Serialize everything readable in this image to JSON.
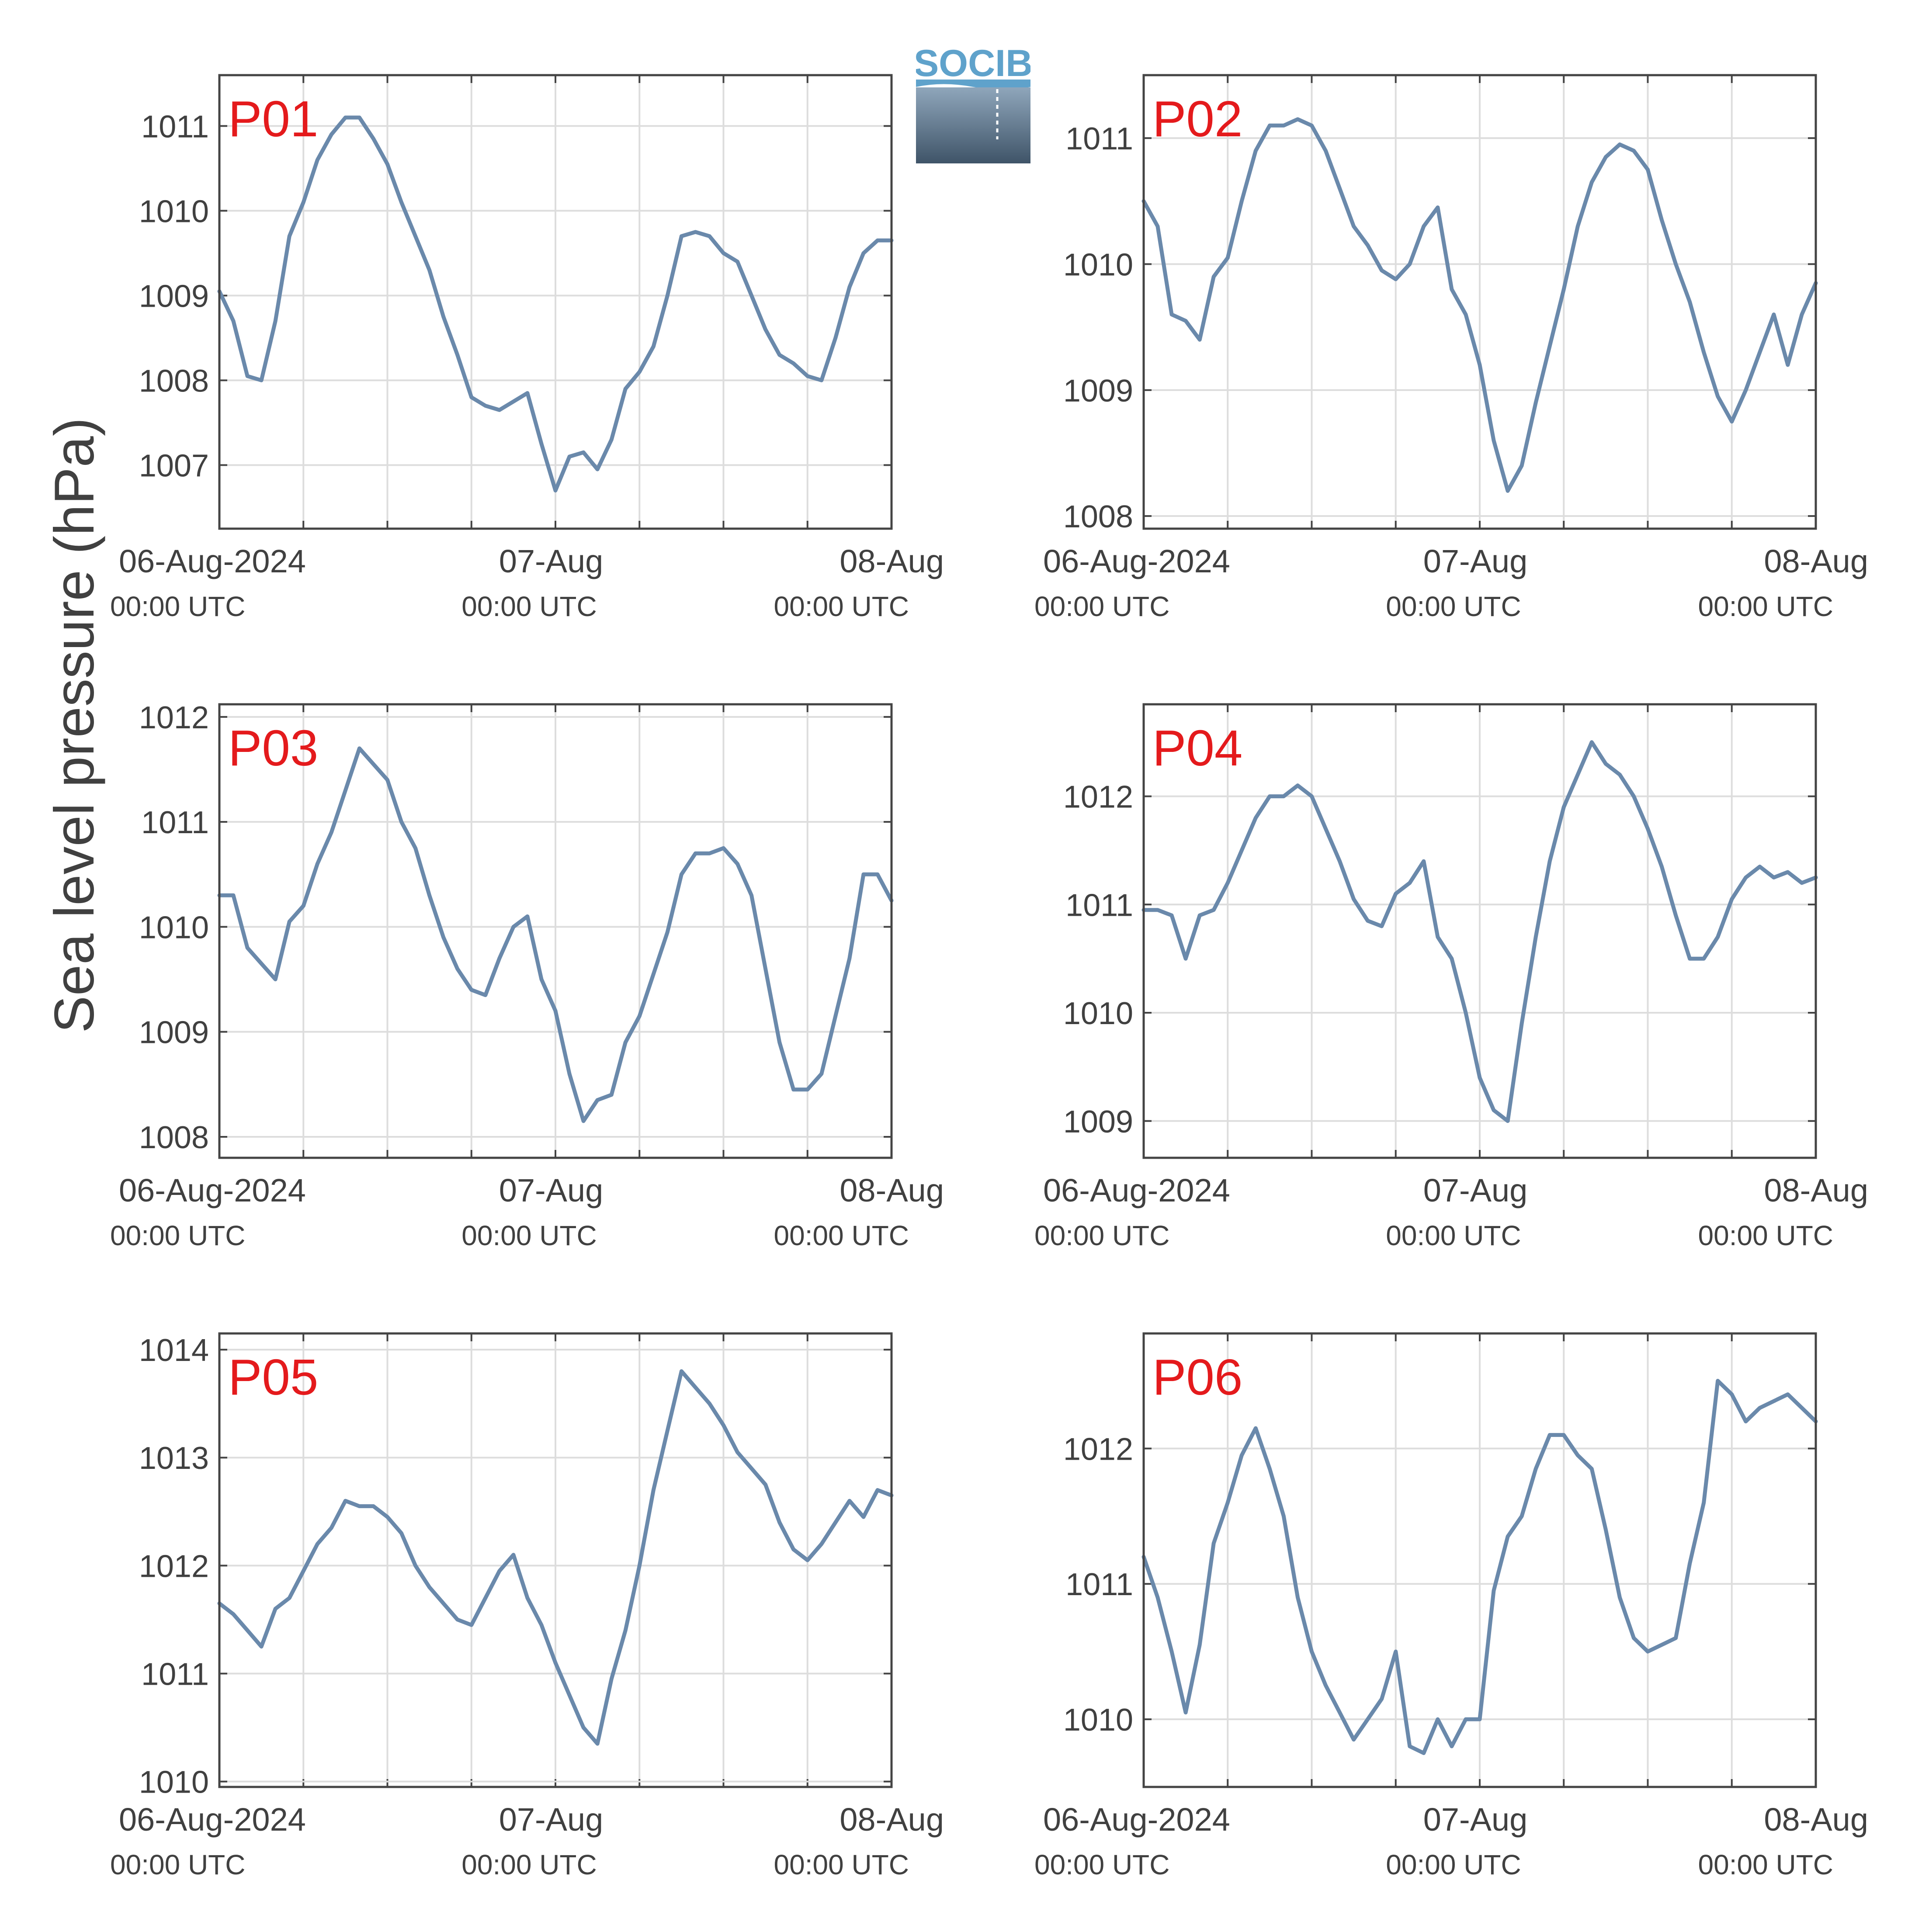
{
  "ylabel": "Sea level pressure (hPa)",
  "logo_text": "SOCIB",
  "colors": {
    "line": "#6a89ab",
    "panel_label": "#e41a1c",
    "grid": "#dddddd",
    "axis": "#444444",
    "text": "#404040"
  },
  "chart_data": [
    {
      "type": "line",
      "panel": "P01",
      "x_range": [
        "06-Aug-2024 00:00",
        "08-Aug-2024 00:00"
      ],
      "x_ticks": [
        {
          "value": "06-Aug-2024 00:00",
          "label": "06-Aug-2024",
          "sublabel": "00:00 UTC"
        },
        {
          "value": "07-Aug-2024 00:00",
          "label": "07-Aug",
          "sublabel": "00:00 UTC"
        },
        {
          "value": "08-Aug-2024 00:00",
          "label": "08-Aug",
          "sublabel": "00:00 UTC"
        }
      ],
      "ylim": [
        1006.25,
        1011.6
      ],
      "yticks": [
        1007,
        1008,
        1009,
        1010,
        1011
      ],
      "grid": true,
      "x": [
        "06-Aug 00:00",
        "06-Aug 01:00",
        "06-Aug 02:00",
        "06-Aug 03:00",
        "06-Aug 04:00",
        "06-Aug 05:00",
        "06-Aug 06:00",
        "06-Aug 07:00",
        "06-Aug 08:00",
        "06-Aug 09:00",
        "06-Aug 10:00",
        "06-Aug 11:00",
        "06-Aug 12:00",
        "06-Aug 13:00",
        "06-Aug 14:00",
        "06-Aug 15:00",
        "06-Aug 16:00",
        "06-Aug 17:00",
        "06-Aug 18:00",
        "06-Aug 19:00",
        "06-Aug 20:00",
        "06-Aug 21:00",
        "06-Aug 22:00",
        "06-Aug 23:00",
        "07-Aug 00:00",
        "07-Aug 01:00",
        "07-Aug 02:00",
        "07-Aug 03:00",
        "07-Aug 04:00",
        "07-Aug 05:00",
        "07-Aug 06:00",
        "07-Aug 07:00",
        "07-Aug 08:00",
        "07-Aug 09:00",
        "07-Aug 10:00",
        "07-Aug 11:00",
        "07-Aug 12:00",
        "07-Aug 13:00",
        "07-Aug 14:00",
        "07-Aug 15:00",
        "07-Aug 16:00",
        "07-Aug 17:00",
        "07-Aug 18:00",
        "07-Aug 19:00",
        "07-Aug 20:00",
        "07-Aug 21:00",
        "07-Aug 22:00",
        "07-Aug 23:00",
        "08-Aug 00:00"
      ],
      "values": [
        1009.05,
        1008.7,
        1008.05,
        1008.0,
        1008.7,
        1009.7,
        1010.1,
        1010.6,
        1010.9,
        1011.1,
        1011.1,
        1010.85,
        1010.55,
        1010.1,
        1009.7,
        1009.3,
        1008.75,
        1008.3,
        1007.8,
        1007.7,
        1007.65,
        1007.75,
        1007.85,
        1007.25,
        1006.7,
        1007.1,
        1007.15,
        1006.95,
        1007.3,
        1007.9,
        1008.1,
        1008.4,
        1009.0,
        1009.7,
        1009.75,
        1009.7,
        1009.5,
        1009.4,
        1009.0,
        1008.6,
        1008.3,
        1008.2,
        1008.05,
        1008.0,
        1008.5,
        1009.1,
        1009.5,
        1009.65,
        1009.65
      ]
    },
    {
      "type": "line",
      "panel": "P02",
      "x_range": [
        "06-Aug-2024 00:00",
        "08-Aug-2024 00:00"
      ],
      "x_ticks": [
        {
          "value": "06-Aug-2024 00:00",
          "label": "06-Aug-2024",
          "sublabel": "00:00 UTC"
        },
        {
          "value": "07-Aug-2024 00:00",
          "label": "07-Aug",
          "sublabel": "00:00 UTC"
        },
        {
          "value": "08-Aug-2024 00:00",
          "label": "08-Aug",
          "sublabel": "00:00 UTC"
        }
      ],
      "ylim": [
        1007.9,
        1011.5
      ],
      "yticks": [
        1008,
        1009,
        1010,
        1011
      ],
      "grid": true,
      "x": [
        "06-Aug 00:00",
        "06-Aug 01:00",
        "06-Aug 02:00",
        "06-Aug 03:00",
        "06-Aug 04:00",
        "06-Aug 05:00",
        "06-Aug 06:00",
        "06-Aug 07:00",
        "06-Aug 08:00",
        "06-Aug 09:00",
        "06-Aug 10:00",
        "06-Aug 11:00",
        "06-Aug 12:00",
        "06-Aug 13:00",
        "06-Aug 14:00",
        "06-Aug 15:00",
        "06-Aug 16:00",
        "06-Aug 17:00",
        "06-Aug 18:00",
        "06-Aug 19:00",
        "06-Aug 20:00",
        "06-Aug 21:00",
        "06-Aug 22:00",
        "06-Aug 23:00",
        "07-Aug 00:00",
        "07-Aug 01:00",
        "07-Aug 02:00",
        "07-Aug 03:00",
        "07-Aug 04:00",
        "07-Aug 05:00",
        "07-Aug 06:00",
        "07-Aug 07:00",
        "07-Aug 08:00",
        "07-Aug 09:00",
        "07-Aug 10:00",
        "07-Aug 11:00",
        "07-Aug 12:00",
        "07-Aug 13:00",
        "07-Aug 14:00",
        "07-Aug 15:00",
        "07-Aug 16:00",
        "07-Aug 17:00",
        "07-Aug 18:00",
        "07-Aug 19:00",
        "07-Aug 20:00",
        "07-Aug 21:00",
        "07-Aug 22:00",
        "07-Aug 23:00",
        "08-Aug 00:00"
      ],
      "values": [
        1010.5,
        1010.3,
        1009.6,
        1009.55,
        1009.4,
        1009.9,
        1010.05,
        1010.5,
        1010.9,
        1011.1,
        1011.1,
        1011.15,
        1011.1,
        1010.9,
        1010.6,
        1010.3,
        1010.15,
        1009.95,
        1009.88,
        1010.0,
        1010.3,
        1010.45,
        1009.8,
        1009.6,
        1009.2,
        1008.6,
        1008.2,
        1008.4,
        1008.9,
        1009.35,
        1009.8,
        1010.3,
        1010.65,
        1010.85,
        1010.95,
        1010.9,
        1010.75,
        1010.35,
        1010.0,
        1009.7,
        1009.3,
        1008.95,
        1008.75,
        1009.0,
        1009.3,
        1009.6,
        1009.2,
        1009.6,
        1009.85
      ]
    },
    {
      "type": "line",
      "panel": "P03",
      "x_range": [
        "06-Aug-2024 00:00",
        "08-Aug-2024 00:00"
      ],
      "x_ticks": [
        {
          "value": "06-Aug-2024 00:00",
          "label": "06-Aug-2024",
          "sublabel": "00:00 UTC"
        },
        {
          "value": "07-Aug-2024 00:00",
          "label": "07-Aug",
          "sublabel": "00:00 UTC"
        },
        {
          "value": "08-Aug-2024 00:00",
          "label": "08-Aug",
          "sublabel": "00:00 UTC"
        }
      ],
      "ylim": [
        1007.8,
        1012.12
      ],
      "yticks": [
        1008,
        1009,
        1010,
        1011,
        1012
      ],
      "grid": true,
      "x": [
        "06-Aug 00:00",
        "06-Aug 01:00",
        "06-Aug 02:00",
        "06-Aug 03:00",
        "06-Aug 04:00",
        "06-Aug 05:00",
        "06-Aug 06:00",
        "06-Aug 07:00",
        "06-Aug 08:00",
        "06-Aug 09:00",
        "06-Aug 10:00",
        "06-Aug 11:00",
        "06-Aug 12:00",
        "06-Aug 13:00",
        "06-Aug 14:00",
        "06-Aug 15:00",
        "06-Aug 16:00",
        "06-Aug 17:00",
        "06-Aug 18:00",
        "06-Aug 19:00",
        "06-Aug 20:00",
        "06-Aug 21:00",
        "06-Aug 22:00",
        "06-Aug 23:00",
        "07-Aug 00:00",
        "07-Aug 01:00",
        "07-Aug 02:00",
        "07-Aug 03:00",
        "07-Aug 04:00",
        "07-Aug 05:00",
        "07-Aug 06:00",
        "07-Aug 07:00",
        "07-Aug 08:00",
        "07-Aug 09:00",
        "07-Aug 10:00",
        "07-Aug 11:00",
        "07-Aug 12:00",
        "07-Aug 13:00",
        "07-Aug 14:00",
        "07-Aug 15:00",
        "07-Aug 16:00",
        "07-Aug 17:00",
        "07-Aug 18:00",
        "07-Aug 19:00",
        "07-Aug 20:00",
        "07-Aug 21:00",
        "07-Aug 22:00",
        "07-Aug 23:00",
        "08-Aug 00:00"
      ],
      "values": [
        1010.3,
        1010.3,
        1009.8,
        1009.65,
        1009.5,
        1010.05,
        1010.2,
        1010.6,
        1010.9,
        1011.3,
        1011.7,
        1011.55,
        1011.4,
        1011.0,
        1010.75,
        1010.3,
        1009.9,
        1009.6,
        1009.4,
        1009.35,
        1009.7,
        1010.0,
        1010.1,
        1009.5,
        1009.2,
        1008.6,
        1008.15,
        1008.35,
        1008.4,
        1008.9,
        1009.15,
        1009.55,
        1009.95,
        1010.5,
        1010.7,
        1010.7,
        1010.75,
        1010.6,
        1010.3,
        1009.6,
        1008.9,
        1008.45,
        1008.45,
        1008.6,
        1009.15,
        1009.7,
        1010.5,
        1010.5,
        1010.25
      ]
    },
    {
      "type": "line",
      "panel": "P04",
      "x_range": [
        "06-Aug-2024 00:00",
        "08-Aug-2024 00:00"
      ],
      "x_ticks": [
        {
          "value": "06-Aug-2024 00:00",
          "label": "06-Aug-2024",
          "sublabel": "00:00 UTC"
        },
        {
          "value": "07-Aug-2024 00:00",
          "label": "07-Aug",
          "sublabel": "00:00 UTC"
        },
        {
          "value": "08-Aug-2024 00:00",
          "label": "08-Aug",
          "sublabel": "00:00 UTC"
        }
      ],
      "ylim": [
        1008.66,
        1012.85
      ],
      "yticks": [
        1009,
        1010,
        1011,
        1012
      ],
      "grid": true,
      "x": [
        "06-Aug 00:00",
        "06-Aug 01:00",
        "06-Aug 02:00",
        "06-Aug 03:00",
        "06-Aug 04:00",
        "06-Aug 05:00",
        "06-Aug 06:00",
        "06-Aug 07:00",
        "06-Aug 08:00",
        "06-Aug 09:00",
        "06-Aug 10:00",
        "06-Aug 11:00",
        "06-Aug 12:00",
        "06-Aug 13:00",
        "06-Aug 14:00",
        "06-Aug 15:00",
        "06-Aug 16:00",
        "06-Aug 17:00",
        "06-Aug 18:00",
        "06-Aug 19:00",
        "06-Aug 20:00",
        "06-Aug 21:00",
        "06-Aug 22:00",
        "06-Aug 23:00",
        "07-Aug 00:00",
        "07-Aug 01:00",
        "07-Aug 02:00",
        "07-Aug 03:00",
        "07-Aug 04:00",
        "07-Aug 05:00",
        "07-Aug 06:00",
        "07-Aug 07:00",
        "07-Aug 08:00",
        "07-Aug 09:00",
        "07-Aug 10:00",
        "07-Aug 11:00",
        "07-Aug 12:00",
        "07-Aug 13:00",
        "07-Aug 14:00",
        "07-Aug 15:00",
        "07-Aug 16:00",
        "07-Aug 17:00",
        "07-Aug 18:00",
        "07-Aug 19:00",
        "07-Aug 20:00",
        "07-Aug 21:00",
        "07-Aug 22:00",
        "07-Aug 23:00",
        "08-Aug 00:00"
      ],
      "values": [
        1010.95,
        1010.95,
        1010.9,
        1010.5,
        1010.9,
        1010.95,
        1011.2,
        1011.5,
        1011.8,
        1012.0,
        1012.0,
        1012.1,
        1012.0,
        1011.7,
        1011.4,
        1011.05,
        1010.85,
        1010.8,
        1011.1,
        1011.2,
        1011.4,
        1010.7,
        1010.5,
        1010.0,
        1009.4,
        1009.1,
        1009.0,
        1009.9,
        1010.7,
        1011.4,
        1011.9,
        1012.2,
        1012.5,
        1012.3,
        1012.2,
        1012.0,
        1011.7,
        1011.35,
        1010.9,
        1010.5,
        1010.5,
        1010.7,
        1011.05,
        1011.25,
        1011.35,
        1011.25,
        1011.3,
        1011.2,
        1011.25
      ]
    },
    {
      "type": "line",
      "panel": "P05",
      "x_range": [
        "06-Aug-2024 00:00",
        "08-Aug-2024 00:00"
      ],
      "x_ticks": [
        {
          "value": "06-Aug-2024 00:00",
          "label": "06-Aug-2024",
          "sublabel": "00:00 UTC"
        },
        {
          "value": "07-Aug-2024 00:00",
          "label": "07-Aug",
          "sublabel": "00:00 UTC"
        },
        {
          "value": "08-Aug-2024 00:00",
          "label": "08-Aug",
          "sublabel": "00:00 UTC"
        }
      ],
      "ylim": [
        1009.95,
        1014.15
      ],
      "yticks": [
        1010,
        1011,
        1012,
        1013,
        1014
      ],
      "grid": true,
      "x": [
        "06-Aug 00:00",
        "06-Aug 01:00",
        "06-Aug 02:00",
        "06-Aug 03:00",
        "06-Aug 04:00",
        "06-Aug 05:00",
        "06-Aug 06:00",
        "06-Aug 07:00",
        "06-Aug 08:00",
        "06-Aug 09:00",
        "06-Aug 10:00",
        "06-Aug 11:00",
        "06-Aug 12:00",
        "06-Aug 13:00",
        "06-Aug 14:00",
        "06-Aug 15:00",
        "06-Aug 16:00",
        "06-Aug 17:00",
        "06-Aug 18:00",
        "06-Aug 19:00",
        "06-Aug 20:00",
        "06-Aug 21:00",
        "06-Aug 22:00",
        "06-Aug 23:00",
        "07-Aug 00:00",
        "07-Aug 01:00",
        "07-Aug 02:00",
        "07-Aug 03:00",
        "07-Aug 04:00",
        "07-Aug 05:00",
        "07-Aug 06:00",
        "07-Aug 07:00",
        "07-Aug 08:00",
        "07-Aug 09:00",
        "07-Aug 10:00",
        "07-Aug 11:00",
        "07-Aug 12:00",
        "07-Aug 13:00",
        "07-Aug 14:00",
        "07-Aug 15:00",
        "07-Aug 16:00",
        "07-Aug 17:00",
        "07-Aug 18:00",
        "07-Aug 19:00",
        "07-Aug 20:00",
        "07-Aug 21:00",
        "07-Aug 22:00",
        "07-Aug 23:00",
        "08-Aug 00:00"
      ],
      "values": [
        1011.65,
        1011.55,
        1011.4,
        1011.25,
        1011.6,
        1011.7,
        1011.95,
        1012.2,
        1012.35,
        1012.6,
        1012.55,
        1012.55,
        1012.45,
        1012.3,
        1012.0,
        1011.8,
        1011.65,
        1011.5,
        1011.45,
        1011.7,
        1011.95,
        1012.1,
        1011.7,
        1011.45,
        1011.1,
        1010.8,
        1010.5,
        1010.35,
        1010.95,
        1011.4,
        1012.0,
        1012.7,
        1013.25,
        1013.8,
        1013.65,
        1013.5,
        1013.3,
        1013.05,
        1012.9,
        1012.75,
        1012.4,
        1012.15,
        1012.05,
        1012.2,
        1012.4,
        1012.6,
        1012.45,
        1012.7,
        1012.65
      ]
    },
    {
      "type": "line",
      "panel": "P06",
      "x_range": [
        "06-Aug-2024 00:00",
        "08-Aug-2024 00:00"
      ],
      "x_ticks": [
        {
          "value": "06-Aug-2024 00:00",
          "label": "06-Aug-2024",
          "sublabel": "00:00 UTC"
        },
        {
          "value": "07-Aug-2024 00:00",
          "label": "07-Aug",
          "sublabel": "00:00 UTC"
        },
        {
          "value": "08-Aug-2024 00:00",
          "label": "08-Aug",
          "sublabel": "00:00 UTC"
        }
      ],
      "ylim": [
        1009.5,
        1012.85
      ],
      "yticks": [
        1010,
        1011,
        1012
      ],
      "grid": true,
      "x": [
        "06-Aug 00:00",
        "06-Aug 01:00",
        "06-Aug 02:00",
        "06-Aug 03:00",
        "06-Aug 04:00",
        "06-Aug 05:00",
        "06-Aug 06:00",
        "06-Aug 07:00",
        "06-Aug 08:00",
        "06-Aug 09:00",
        "06-Aug 10:00",
        "06-Aug 11:00",
        "06-Aug 12:00",
        "06-Aug 13:00",
        "06-Aug 14:00",
        "06-Aug 15:00",
        "06-Aug 16:00",
        "06-Aug 17:00",
        "06-Aug 18:00",
        "06-Aug 19:00",
        "06-Aug 20:00",
        "06-Aug 21:00",
        "06-Aug 22:00",
        "06-Aug 23:00",
        "07-Aug 00:00",
        "07-Aug 01:00",
        "07-Aug 02:00",
        "07-Aug 03:00",
        "07-Aug 04:00",
        "07-Aug 05:00",
        "07-Aug 06:00",
        "07-Aug 07:00",
        "07-Aug 08:00",
        "07-Aug 09:00",
        "07-Aug 10:00",
        "07-Aug 11:00",
        "07-Aug 12:00",
        "07-Aug 13:00",
        "07-Aug 14:00",
        "07-Aug 15:00",
        "07-Aug 16:00",
        "07-Aug 17:00",
        "07-Aug 18:00",
        "07-Aug 19:00",
        "07-Aug 20:00",
        "07-Aug 21:00",
        "07-Aug 22:00",
        "07-Aug 23:00",
        "08-Aug 00:00"
      ],
      "values": [
        1011.2,
        1010.9,
        1010.5,
        1010.05,
        1010.55,
        1011.3,
        1011.6,
        1011.95,
        1012.15,
        1011.85,
        1011.5,
        1010.9,
        1010.5,
        1010.25,
        1010.05,
        1009.85,
        1010.0,
        1010.15,
        1010.5,
        1009.8,
        1009.75,
        1010.0,
        1009.8,
        1010.0,
        1010.0,
        1010.95,
        1011.35,
        1011.5,
        1011.85,
        1012.1,
        1012.1,
        1011.95,
        1011.85,
        1011.4,
        1010.9,
        1010.6,
        1010.5,
        1010.55,
        1010.6,
        1011.15,
        1011.6,
        1012.5,
        1012.4,
        1012.2,
        1012.3,
        1012.35,
        1012.4,
        1012.3,
        1012.2
      ]
    }
  ]
}
